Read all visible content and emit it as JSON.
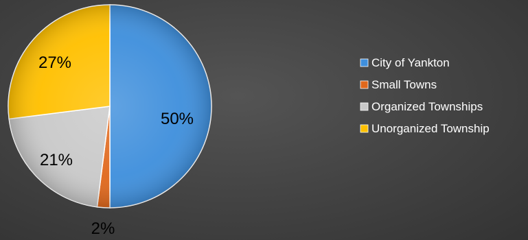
{
  "chart_data": {
    "type": "pie",
    "title": "",
    "categories": [
      "City of Yankton",
      "Small Towns",
      "Organized Townships",
      "Unorganized Township"
    ],
    "values": [
      50,
      2,
      21,
      27
    ],
    "labels": [
      "50%",
      "2%",
      "21%",
      "27%"
    ],
    "colors": [
      "#3f8fdc",
      "#e0681c",
      "#c9c9c9",
      "#ffc000"
    ],
    "start_angle": "12 o'clock",
    "direction": "clockwise",
    "legend_position": "right"
  }
}
